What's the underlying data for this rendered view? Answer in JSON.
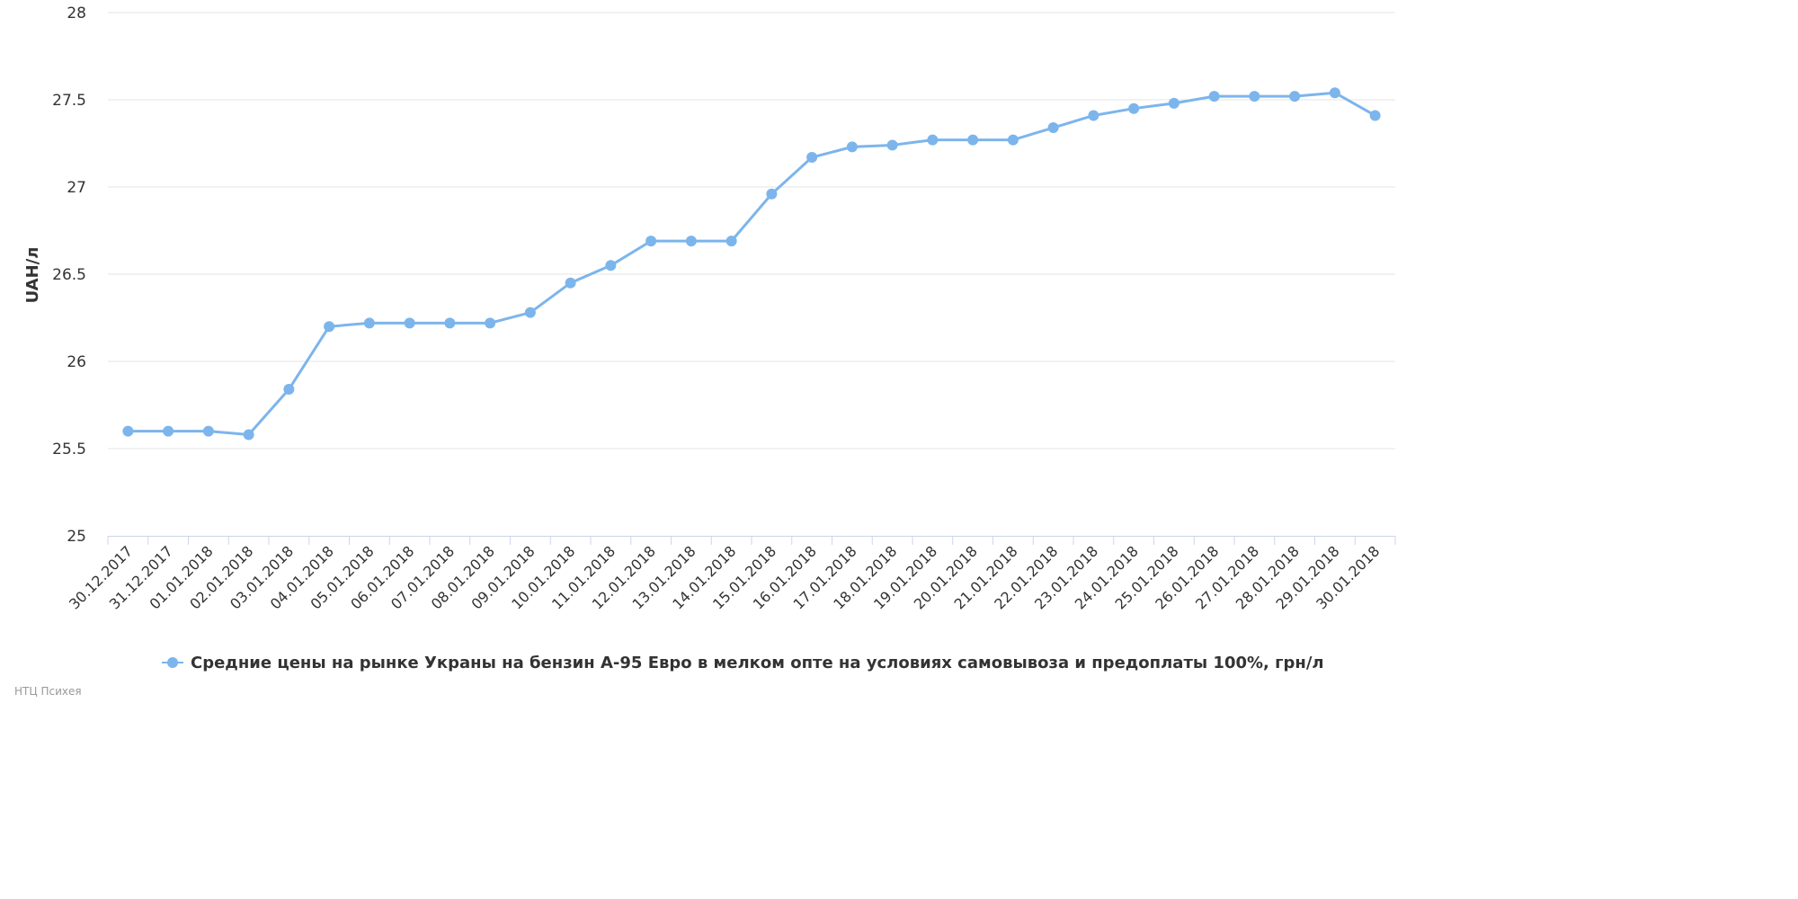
{
  "chart_data": {
    "type": "line",
    "title": "",
    "xlabel": "",
    "ylabel": "UAH/л",
    "ylim": [
      25,
      28
    ],
    "yticks": [
      "25",
      "25.5",
      "26",
      "26.5",
      "27",
      "27.5",
      "28"
    ],
    "grid": true,
    "legend_position": "bottom",
    "categories": [
      "30.12.2017",
      "31.12.2017",
      "01.01.2018",
      "02.01.2018",
      "03.01.2018",
      "04.01.2018",
      "05.01.2018",
      "06.01.2018",
      "07.01.2018",
      "08.01.2018",
      "09.01.2018",
      "10.01.2018",
      "11.01.2018",
      "12.01.2018",
      "13.01.2018",
      "14.01.2018",
      "15.01.2018",
      "16.01.2018",
      "17.01.2018",
      "18.01.2018",
      "19.01.2018",
      "20.01.2018",
      "21.01.2018",
      "22.01.2018",
      "23.01.2018",
      "24.01.2018",
      "25.01.2018",
      "26.01.2018",
      "27.01.2018",
      "28.01.2018",
      "29.01.2018",
      "30.01.2018"
    ],
    "series": [
      {
        "name": "Средние цены на рынке Украны на бензин А-95 Евро в мелком опте на условиях самовывоза и предоплаты 100%, грн/л",
        "color": "#7cb5ec",
        "values": [
          25.6,
          25.6,
          25.6,
          25.58,
          25.84,
          26.2,
          26.22,
          26.22,
          26.22,
          26.22,
          26.28,
          26.45,
          26.55,
          26.69,
          26.69,
          26.69,
          26.96,
          27.17,
          27.23,
          27.24,
          27.27,
          27.27,
          27.27,
          27.34,
          27.41,
          27.45,
          27.48,
          27.52,
          27.52,
          27.52,
          27.54,
          27.41
        ]
      }
    ]
  },
  "credits": "НТЦ Психея",
  "colors": {
    "series": "#7cb5ec",
    "grid": "#e6e6e6",
    "axis": "#ccd6eb",
    "label": "#333333",
    "credits": "#999999"
  }
}
